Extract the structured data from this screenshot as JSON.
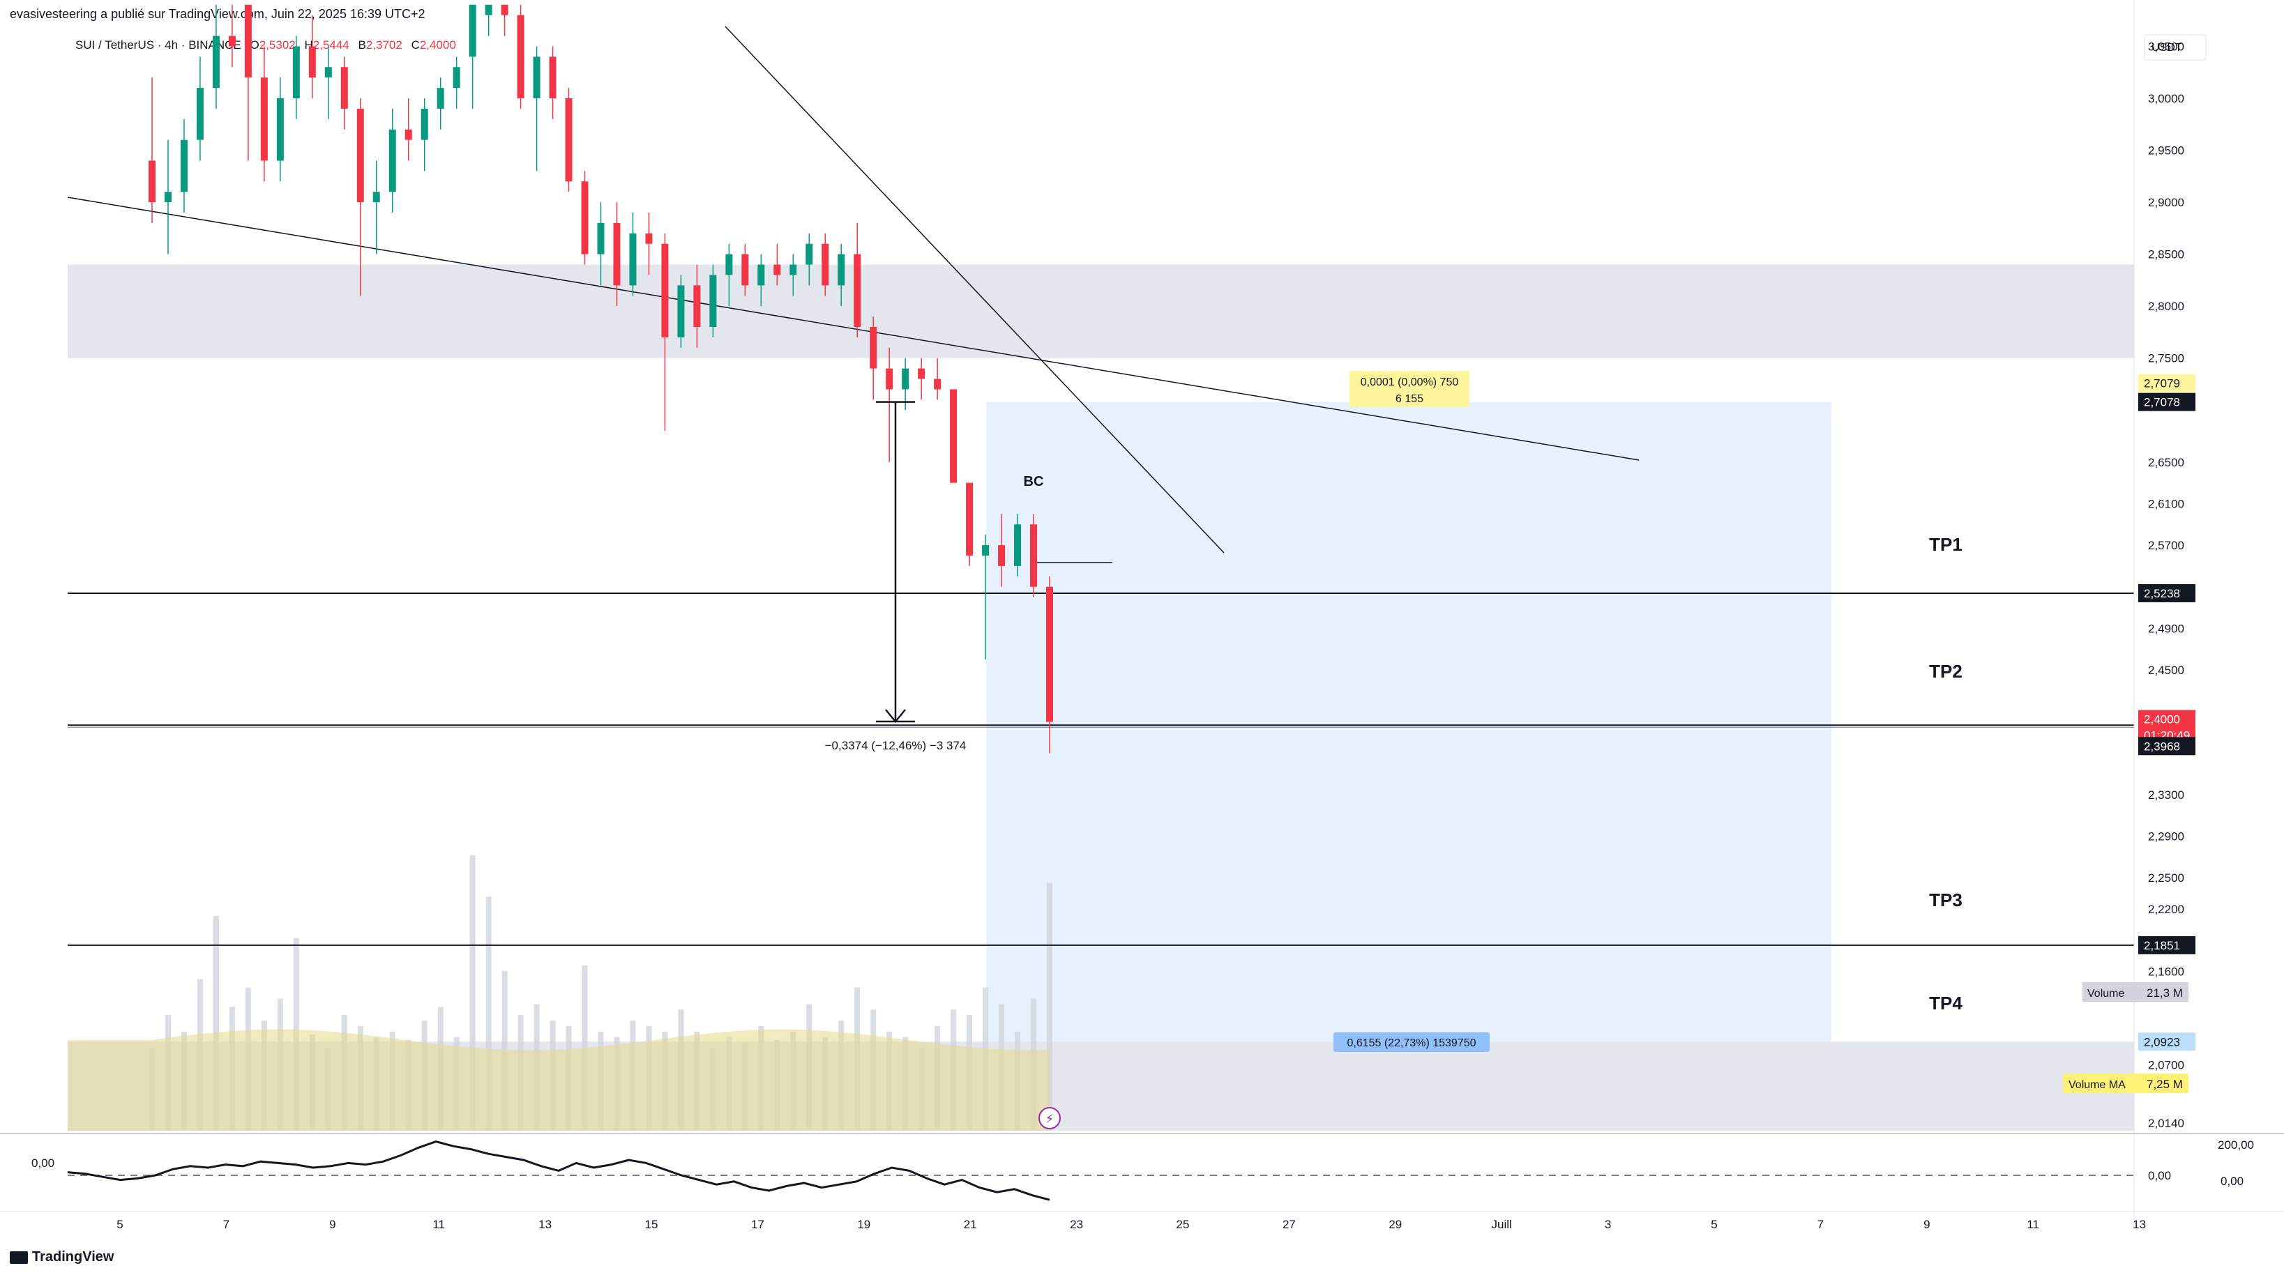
{
  "header": {
    "publisher_line": "evasivesteering a publié sur TradingView.com, Juin 22, 2025 16:39 UTC+2"
  },
  "legend": {
    "symbol": "SUI / TetherUS · 4h · BINANCE",
    "open_label": "O",
    "open": "2,5302",
    "high_label": "H",
    "high": "2,5444",
    "low_label": "B",
    "low": "2,3702",
    "close_label": "C",
    "close": "2,4000"
  },
  "footer": {
    "brand": "TradingView"
  },
  "chart_data": {
    "type": "candlestick",
    "currency": "USDT",
    "ylim": [
      2.014,
      3.09
    ],
    "x_tick_labels": [
      "5",
      "7",
      "9",
      "11",
      "13",
      "15",
      "17",
      "19",
      "21",
      "23",
      "25",
      "27",
      "29",
      "Juill",
      "3",
      "5",
      "7",
      "9",
      "11",
      "13"
    ],
    "y_tick_labels": [
      "3,0500",
      "3,0000",
      "2,9500",
      "2,9000",
      "2,8500",
      "2,8000",
      "2,7500",
      "2,6500",
      "2,6100",
      "2,5700",
      "2,4900",
      "2,4500",
      "2,3300",
      "2,2900",
      "2,2500",
      "2,2200",
      "2,1600",
      "2,0700",
      "2,0140"
    ],
    "price_labels": [
      {
        "text": "2,7079",
        "color": "#fff59d",
        "text_color": "#131722"
      },
      {
        "text": "2,7078",
        "color": "#131722",
        "text_color": "#ffffff"
      },
      {
        "text": "2,5238",
        "color": "#131722",
        "text_color": "#ffffff"
      },
      {
        "text": "2,4000",
        "color": "#f23645",
        "text_color": "#ffffff",
        "sub": "01:20:49"
      },
      {
        "text": "2,3968",
        "color": "#131722",
        "text_color": "#ffffff"
      },
      {
        "text": "2,1851",
        "color": "#131722",
        "text_color": "#ffffff"
      },
      {
        "text": "2,0923",
        "color": "#bbdefb",
        "text_color": "#131722"
      }
    ],
    "volume_labels": [
      {
        "name": "Volume",
        "value": "21,3 M"
      },
      {
        "name": "Volume MA",
        "value": "7,25 M"
      }
    ],
    "candles": [
      {
        "o": 2.94,
        "h": 3.02,
        "l": 2.88,
        "c": 2.9
      },
      {
        "o": 2.9,
        "h": 2.96,
        "l": 2.85,
        "c": 2.91
      },
      {
        "o": 2.91,
        "h": 2.98,
        "l": 2.89,
        "c": 2.96
      },
      {
        "o": 2.96,
        "h": 3.04,
        "l": 2.94,
        "c": 3.01
      },
      {
        "o": 3.01,
        "h": 3.09,
        "l": 2.99,
        "c": 3.06
      },
      {
        "o": 3.06,
        "h": 3.09,
        "l": 3.03,
        "c": 3.05
      },
      {
        "o": 3.09,
        "h": 3.09,
        "l": 2.94,
        "c": 3.02
      },
      {
        "o": 3.02,
        "h": 3.05,
        "l": 2.92,
        "c": 2.94
      },
      {
        "o": 2.94,
        "h": 3.02,
        "l": 2.92,
        "c": 3.0
      },
      {
        "o": 3.0,
        "h": 3.06,
        "l": 2.98,
        "c": 3.05
      },
      {
        "o": 3.05,
        "h": 3.08,
        "l": 3.0,
        "c": 3.02
      },
      {
        "o": 3.02,
        "h": 3.05,
        "l": 2.98,
        "c": 3.03
      },
      {
        "o": 3.03,
        "h": 3.04,
        "l": 2.97,
        "c": 2.99
      },
      {
        "o": 2.99,
        "h": 3.0,
        "l": 2.81,
        "c": 2.9
      },
      {
        "o": 2.9,
        "h": 2.94,
        "l": 2.85,
        "c": 2.91
      },
      {
        "o": 2.91,
        "h": 2.99,
        "l": 2.89,
        "c": 2.97
      },
      {
        "o": 2.97,
        "h": 3.0,
        "l": 2.94,
        "c": 2.96
      },
      {
        "o": 2.96,
        "h": 3.0,
        "l": 2.93,
        "c": 2.99
      },
      {
        "o": 2.99,
        "h": 3.02,
        "l": 2.97,
        "c": 3.01
      },
      {
        "o": 3.01,
        "h": 3.04,
        "l": 2.99,
        "c": 3.03
      },
      {
        "o": 3.04,
        "h": 3.1,
        "l": 2.99,
        "c": 3.09
      },
      {
        "o": 3.08,
        "h": 3.1,
        "l": 3.06,
        "c": 3.09
      },
      {
        "o": 3.09,
        "h": 3.1,
        "l": 3.06,
        "c": 3.08
      },
      {
        "o": 3.08,
        "h": 3.09,
        "l": 2.99,
        "c": 3.0
      },
      {
        "o": 3.0,
        "h": 3.05,
        "l": 2.93,
        "c": 3.04
      },
      {
        "o": 3.04,
        "h": 3.05,
        "l": 2.98,
        "c": 3.0
      },
      {
        "o": 3.0,
        "h": 3.01,
        "l": 2.91,
        "c": 2.92
      },
      {
        "o": 2.92,
        "h": 2.93,
        "l": 2.84,
        "c": 2.85
      },
      {
        "o": 2.85,
        "h": 2.9,
        "l": 2.82,
        "c": 2.88
      },
      {
        "o": 2.88,
        "h": 2.9,
        "l": 2.8,
        "c": 2.82
      },
      {
        "o": 2.82,
        "h": 2.89,
        "l": 2.81,
        "c": 2.87
      },
      {
        "o": 2.87,
        "h": 2.89,
        "l": 2.83,
        "c": 2.86
      },
      {
        "o": 2.86,
        "h": 2.87,
        "l": 2.68,
        "c": 2.77
      },
      {
        "o": 2.77,
        "h": 2.83,
        "l": 2.76,
        "c": 2.82
      },
      {
        "o": 2.82,
        "h": 2.84,
        "l": 2.76,
        "c": 2.78
      },
      {
        "o": 2.78,
        "h": 2.84,
        "l": 2.77,
        "c": 2.83
      },
      {
        "o": 2.83,
        "h": 2.86,
        "l": 2.8,
        "c": 2.85
      },
      {
        "o": 2.85,
        "h": 2.86,
        "l": 2.81,
        "c": 2.82
      },
      {
        "o": 2.82,
        "h": 2.85,
        "l": 2.8,
        "c": 2.84
      },
      {
        "o": 2.84,
        "h": 2.86,
        "l": 2.82,
        "c": 2.83
      },
      {
        "o": 2.83,
        "h": 2.85,
        "l": 2.81,
        "c": 2.84
      },
      {
        "o": 2.84,
        "h": 2.87,
        "l": 2.82,
        "c": 2.86
      },
      {
        "o": 2.86,
        "h": 2.87,
        "l": 2.81,
        "c": 2.82
      },
      {
        "o": 2.82,
        "h": 2.86,
        "l": 2.8,
        "c": 2.85
      },
      {
        "o": 2.85,
        "h": 2.88,
        "l": 2.77,
        "c": 2.78
      },
      {
        "o": 2.78,
        "h": 2.79,
        "l": 2.71,
        "c": 2.74
      },
      {
        "o": 2.74,
        "h": 2.76,
        "l": 2.65,
        "c": 2.72
      },
      {
        "o": 2.72,
        "h": 2.75,
        "l": 2.7,
        "c": 2.74
      },
      {
        "o": 2.74,
        "h": 2.75,
        "l": 2.71,
        "c": 2.73
      },
      {
        "o": 2.73,
        "h": 2.75,
        "l": 2.71,
        "c": 2.72
      },
      {
        "o": 2.72,
        "h": 2.72,
        "l": 2.63,
        "c": 2.63
      },
      {
        "o": 2.63,
        "h": 2.63,
        "l": 2.55,
        "c": 2.56
      },
      {
        "o": 2.56,
        "h": 2.58,
        "l": 2.46,
        "c": 2.57
      },
      {
        "o": 2.57,
        "h": 2.6,
        "l": 2.53,
        "c": 2.55
      },
      {
        "o": 2.55,
        "h": 2.6,
        "l": 2.54,
        "c": 2.59
      },
      {
        "o": 2.59,
        "h": 2.6,
        "l": 2.52,
        "c": 2.53
      },
      {
        "o": 2.53,
        "h": 2.54,
        "l": 2.37,
        "c": 2.4
      }
    ],
    "volumes": [
      0.3,
      0.42,
      0.36,
      0.55,
      0.78,
      0.45,
      0.52,
      0.4,
      0.48,
      0.7,
      0.35,
      0.3,
      0.42,
      0.38,
      0.34,
      0.36,
      0.33,
      0.4,
      0.45,
      0.34,
      1.0,
      0.85,
      0.58,
      0.42,
      0.46,
      0.4,
      0.38,
      0.6,
      0.36,
      0.34,
      0.4,
      0.38,
      0.36,
      0.44,
      0.36,
      0.3,
      0.34,
      0.32,
      0.38,
      0.33,
      0.36,
      0.46,
      0.34,
      0.4,
      0.52,
      0.44,
      0.36,
      0.34,
      0.3,
      0.38,
      0.44,
      0.42,
      0.52,
      0.46,
      0.36,
      0.48,
      0.9
    ],
    "annotations": {
      "bc_label": "BC",
      "tp1": "TP1",
      "tp2": "TP2",
      "tp3": "TP3",
      "tp4": "TP4",
      "measure": "−0,3374 (−12,46%) −3 374",
      "target_top_line1": "0,0001 (0,00%) 750",
      "target_top_line2": "6 155",
      "target_bottom": "0,6155 (22,73%) 1539750"
    },
    "levels": {
      "supply_zone": [
        2.75,
        2.84
      ],
      "demand_zone": [
        2.014,
        2.0923
      ],
      "tp1": 2.5238,
      "tp2": 2.3968,
      "tp3": 2.1851,
      "target_top": 2.7078
    },
    "oscillator": {
      "left_label": "0,00",
      "right_labels": [
        "200,00",
        "0,00"
      ],
      "values": [
        0.02,
        0.01,
        -0.01,
        -0.03,
        -0.02,
        0.0,
        0.04,
        0.06,
        0.05,
        0.07,
        0.06,
        0.09,
        0.08,
        0.07,
        0.05,
        0.06,
        0.08,
        0.07,
        0.09,
        0.13,
        0.18,
        0.22,
        0.19,
        0.17,
        0.14,
        0.12,
        0.1,
        0.06,
        0.03,
        0.08,
        0.05,
        0.07,
        0.1,
        0.08,
        0.04,
        0.0,
        -0.03,
        -0.06,
        -0.04,
        -0.08,
        -0.1,
        -0.07,
        -0.05,
        -0.08,
        -0.06,
        -0.04,
        0.01,
        0.05,
        0.03,
        -0.02,
        -0.06,
        -0.03,
        -0.08,
        -0.11,
        -0.09,
        -0.13,
        -0.16
      ]
    }
  }
}
